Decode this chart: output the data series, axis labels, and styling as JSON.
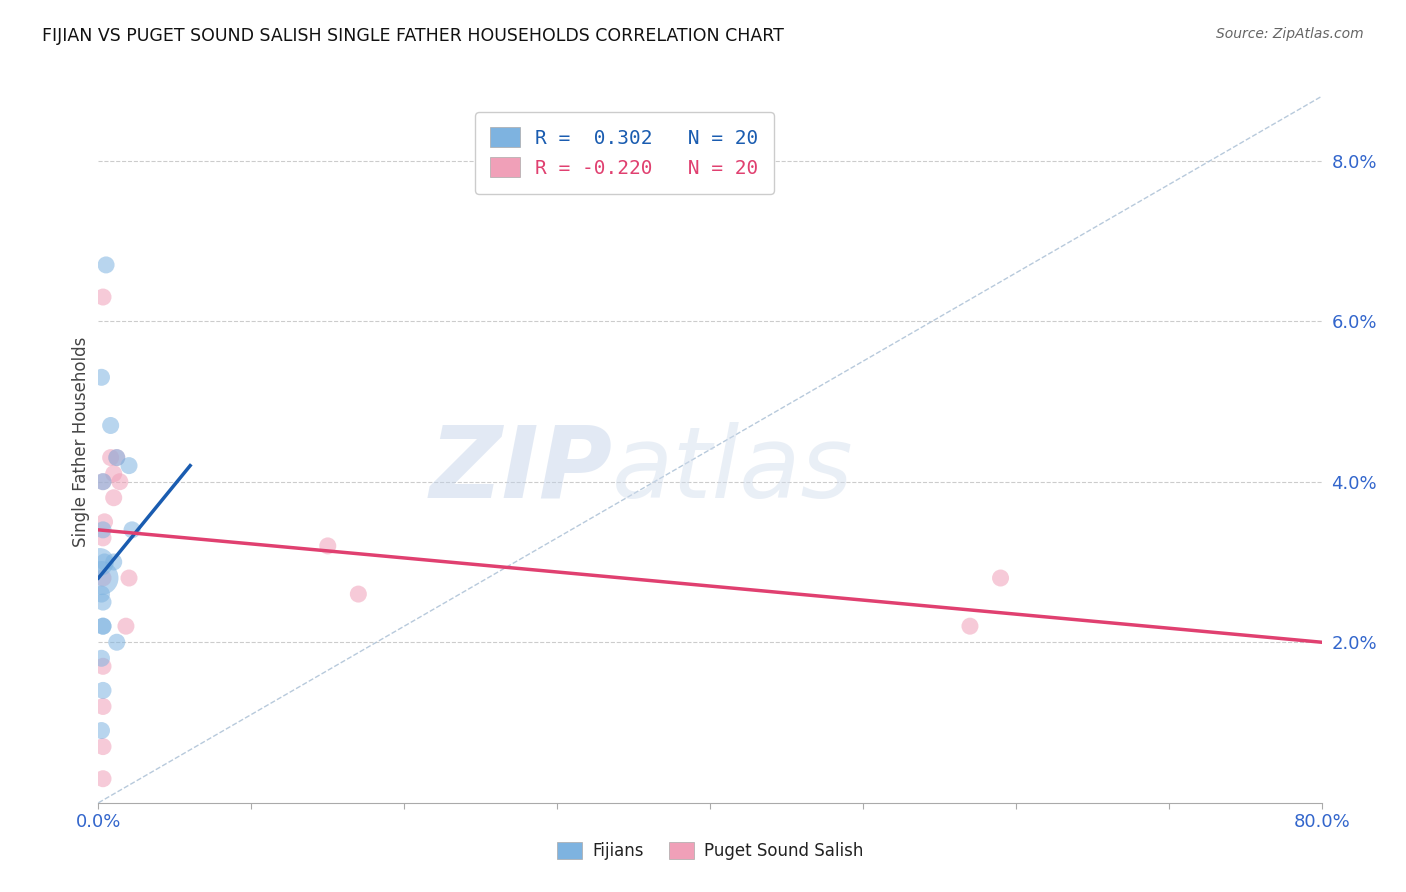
{
  "title": "FIJIAN VS PUGET SOUND SALISH SINGLE FATHER HOUSEHOLDS CORRELATION CHART",
  "source": "Source: ZipAtlas.com",
  "ylabel": "Single Father Households",
  "xlim": [
    0.0,
    0.8
  ],
  "ylim": [
    0.0,
    0.09
  ],
  "xticks": [
    0.0,
    0.1,
    0.2,
    0.3,
    0.4,
    0.5,
    0.6,
    0.7,
    0.8
  ],
  "xticklabels": [
    "0.0%",
    "",
    "",
    "",
    "",
    "",
    "",
    "",
    "80.0%"
  ],
  "yticks": [
    0.0,
    0.02,
    0.04,
    0.06,
    0.08
  ],
  "yticklabels": [
    "",
    "2.0%",
    "4.0%",
    "6.0%",
    "8.0%"
  ],
  "fijians_x": [
    0.001,
    0.005,
    0.002,
    0.008,
    0.012,
    0.02,
    0.003,
    0.003,
    0.004,
    0.01,
    0.002,
    0.002,
    0.003,
    0.003,
    0.022,
    0.003,
    0.012,
    0.002,
    0.003,
    0.002
  ],
  "fijians_y": [
    0.03,
    0.067,
    0.053,
    0.047,
    0.043,
    0.042,
    0.04,
    0.034,
    0.03,
    0.03,
    0.028,
    0.026,
    0.025,
    0.022,
    0.034,
    0.022,
    0.02,
    0.018,
    0.014,
    0.009
  ],
  "fijians_sizes": [
    400,
    150,
    150,
    150,
    150,
    150,
    150,
    150,
    150,
    150,
    600,
    150,
    150,
    150,
    150,
    150,
    150,
    150,
    150,
    150
  ],
  "salish_x": [
    0.003,
    0.008,
    0.012,
    0.014,
    0.01,
    0.01,
    0.003,
    0.004,
    0.003,
    0.003,
    0.02,
    0.018,
    0.15,
    0.17,
    0.57,
    0.59,
    0.003,
    0.003,
    0.003,
    0.003
  ],
  "salish_y": [
    0.063,
    0.043,
    0.043,
    0.04,
    0.041,
    0.038,
    0.04,
    0.035,
    0.033,
    0.028,
    0.028,
    0.022,
    0.032,
    0.026,
    0.022,
    0.028,
    0.017,
    0.012,
    0.007,
    0.003
  ],
  "salish_sizes": [
    150,
    150,
    150,
    150,
    150,
    150,
    150,
    150,
    150,
    150,
    150,
    150,
    150,
    150,
    150,
    150,
    150,
    150,
    150,
    150
  ],
  "blue_color": "#7EB3E0",
  "pink_color": "#F0A0B8",
  "blue_line_color": "#1A5CB0",
  "pink_line_color": "#E04070",
  "ref_line_color": "#B0C4D8",
  "blue_trend_x": [
    0.0,
    0.06
  ],
  "blue_trend_y": [
    0.028,
    0.042
  ],
  "pink_trend_x": [
    0.0,
    0.8
  ],
  "pink_trend_y": [
    0.034,
    0.02
  ],
  "R_blue": "0.302",
  "N_blue": "20",
  "R_pink": "-0.220",
  "N_pink": "20",
  "legend_label_blue": "Fijians",
  "legend_label_pink": "Puget Sound Salish",
  "watermark_zip": "ZIP",
  "watermark_atlas": "atlas"
}
